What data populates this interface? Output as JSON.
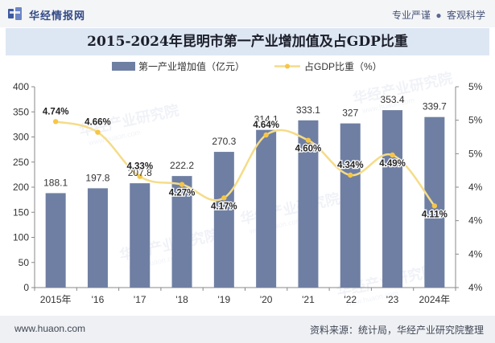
{
  "header": {
    "brand": "华经情报网",
    "tagline_left": "专业严谨",
    "tagline_sep": "●",
    "tagline_right": "客观科学"
  },
  "footer": {
    "website": "www.huaon.com",
    "source": "资料来源：统计局，华经产业研究院整理"
  },
  "watermark": "华经产业研究院",
  "watermark_url": "www.huaon.com",
  "colors": {
    "bar": "#6f7fa3",
    "line": "#f5dc88",
    "point": "#f7c646",
    "title_band": "#dde7f3",
    "brand": "#334a86"
  },
  "chart_data": {
    "type": "bar+line",
    "title": "2015-2024年昆明市第一产业增加值及占GDP比重",
    "categories": [
      "2015年",
      "'16",
      "'17",
      "'18",
      "'19",
      "'20",
      "'21",
      "'22",
      "'23",
      "2024年"
    ],
    "series": [
      {
        "name": "第一产业增加值（亿元）",
        "type": "bar",
        "axis": "left",
        "values": [
          188.1,
          197.8,
          207.8,
          222.2,
          270.3,
          314.1,
          333.1,
          327,
          353.4,
          339.7
        ],
        "labels": [
          "188.1",
          "197.8",
          "207.8",
          "222.2",
          "270.3",
          "314.1",
          "333.1",
          "327",
          "353.4",
          "339.7"
        ]
      },
      {
        "name": "占GDP比重（%）",
        "type": "line",
        "smooth": true,
        "axis": "right",
        "values": [
          4.74,
          4.66,
          4.33,
          4.27,
          4.17,
          4.64,
          4.6,
          4.34,
          4.49,
          4.11
        ],
        "labels": [
          "4.74%",
          "4.66%",
          "4.33%",
          "4.27%",
          "4.17%",
          "4.64%",
          "4.60%",
          "4.34%",
          "4.49%",
          "4.11%"
        ]
      }
    ],
    "y_left": {
      "min": 0,
      "max": 400,
      "ticks": [
        0,
        50,
        100,
        150,
        200,
        250,
        300,
        350,
        400
      ],
      "tick_labels": [
        "0",
        "50",
        "100",
        "150",
        "200",
        "250",
        "300",
        "350",
        "400"
      ]
    },
    "y_right": {
      "min": 3.5,
      "max": 5.0,
      "ticks": [
        3.5,
        3.75,
        4.0,
        4.25,
        4.5,
        4.75,
        5.0
      ],
      "tick_labels": [
        "4%",
        "4%",
        "4%",
        "4%",
        "5%",
        "5%",
        "5%"
      ]
    },
    "legend_position": "top-center",
    "grid": false
  }
}
